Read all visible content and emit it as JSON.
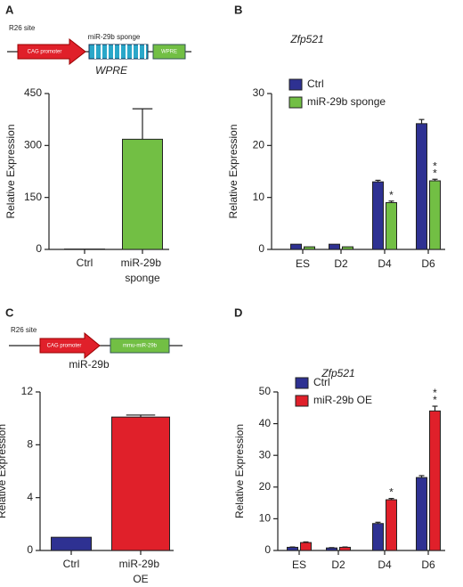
{
  "panel_labels": [
    "A",
    "B",
    "C",
    "D"
  ],
  "diagrams": [
    {
      "site": "R26 site",
      "promoter": "CAG promoter",
      "insert": "miR-29b sponge",
      "element": "WPRE"
    },
    {
      "site": "R26 site",
      "promoter": "CAG promoter",
      "element": "mmu-miR-29b"
    }
  ],
  "chart_data": [
    {
      "type": "bar",
      "title": "WPRE",
      "y_label": "Relative Expression",
      "categories": [
        "Ctrl",
        "miR-29b sponge"
      ],
      "values": [
        1,
        318
      ],
      "errors": [
        null,
        88
      ],
      "colors": [
        "#2e3192",
        "#72bf44"
      ],
      "ylim": [
        0,
        450
      ],
      "yticks": [
        0,
        150,
        300,
        450
      ]
    },
    {
      "type": "grouped_bar",
      "title": "Zfp521",
      "y_label": "Relative Expression",
      "categories": [
        "ES",
        "D2",
        "D4",
        "D6"
      ],
      "legend": "upper left",
      "series": [
        {
          "name": "Ctrl",
          "color": "#2e3192",
          "values": [
            1,
            1,
            13,
            24.2
          ],
          "errors": [
            null,
            null,
            0.3,
            0.8
          ],
          "markers": [
            null,
            null,
            null,
            null
          ]
        },
        {
          "name": "miR-29b sponge",
          "color": "#72bf44",
          "values": [
            0.5,
            0.5,
            9,
            13.2
          ],
          "errors": [
            null,
            null,
            0.3,
            0.3
          ],
          "markers": [
            null,
            null,
            "*",
            "**"
          ]
        }
      ],
      "ylim": [
        0,
        30
      ],
      "yticks": [
        0,
        10,
        20,
        30
      ]
    },
    {
      "type": "bar",
      "title": "miR-29b",
      "y_label": "Relative Expression",
      "categories": [
        "Ctrl",
        "miR-29b OE"
      ],
      "values": [
        1,
        10.1
      ],
      "errors": [
        null,
        0.15
      ],
      "colors": [
        "#2e3192",
        "#e0202a"
      ],
      "ylim": [
        0,
        12
      ],
      "yticks": [
        0,
        4,
        8,
        12
      ]
    },
    {
      "type": "grouped_bar",
      "title": "Zfp521",
      "y_label": "Relative Expression",
      "categories": [
        "ES",
        "D2",
        "D4",
        "D6"
      ],
      "legend": "upper left",
      "series": [
        {
          "name": "Ctrl",
          "color": "#2e3192",
          "values": [
            1,
            0.8,
            8.5,
            23
          ],
          "errors": [
            0.1,
            0.1,
            0.4,
            0.6
          ],
          "markers": [
            null,
            null,
            null,
            null
          ]
        },
        {
          "name": "miR-29b OE",
          "color": "#e0202a",
          "values": [
            2.5,
            1,
            16,
            44
          ],
          "errors": [
            0.2,
            0.1,
            0.4,
            1.5
          ],
          "markers": [
            null,
            null,
            "*",
            "**"
          ]
        }
      ],
      "ylim": [
        0,
        50
      ],
      "yticks": [
        0,
        10,
        20,
        30,
        40,
        50
      ]
    }
  ]
}
